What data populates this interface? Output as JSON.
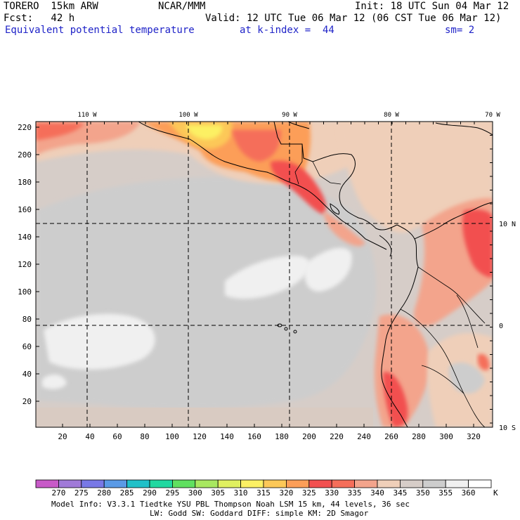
{
  "header": {
    "model": "TORERO  15km ARW",
    "center": "NCAR/MMM",
    "init": "Init: 18 UTC Sun 04 Mar 12",
    "fcst": "Fcst:   42 h",
    "valid": "Valid: 12 UTC Tue 06 Mar 12 (06 CST Tue 06 Mar 12)",
    "field": "Equivalent potential temperature",
    "level": "at k-index =  44",
    "smooth": "sm= 2"
  },
  "map": {
    "lon_labels": [
      "110 W",
      "100 W",
      "90 W",
      "80 W",
      "70 W"
    ],
    "lat_labels": [
      "10 N",
      "0",
      "10 S"
    ],
    "y_ticks": [
      "220",
      "200",
      "180",
      "160",
      "140",
      "120",
      "100",
      "80",
      "60",
      "40",
      "20"
    ],
    "x_ticks": [
      "20",
      "40",
      "60",
      "80",
      "100",
      "120",
      "140",
      "160",
      "180",
      "200",
      "220",
      "240",
      "260",
      "280",
      "300",
      "320"
    ]
  },
  "colorbar": {
    "labels": [
      "270",
      "275",
      "280",
      "285",
      "290",
      "295",
      "300",
      "305",
      "310",
      "315",
      "320",
      "325",
      "330",
      "335",
      "340",
      "345",
      "350",
      "355",
      "360"
    ],
    "unit": "K",
    "colors": [
      "#c85ac8",
      "#a07ad8",
      "#7878e6",
      "#5a9ae6",
      "#20c0c8",
      "#20d8a0",
      "#60e060",
      "#a8e860",
      "#e0f060",
      "#fcf064",
      "#fcc858",
      "#fc9e58",
      "#f25050",
      "#f56e5a",
      "#f3a48c",
      "#efcfb9",
      "#d6cdc8",
      "#cdcdcd",
      "#f0f0f0",
      "#ffffff"
    ]
  },
  "footer": {
    "line1": "Model Info: V3.3.1     Tiedtke YSU PBL  Thompson    Noah LSM  15 km,   44 levels,   36 sec",
    "line2": "LW: Godd SW: Goddard DIFF: simple KM: 2D Smagor"
  }
}
